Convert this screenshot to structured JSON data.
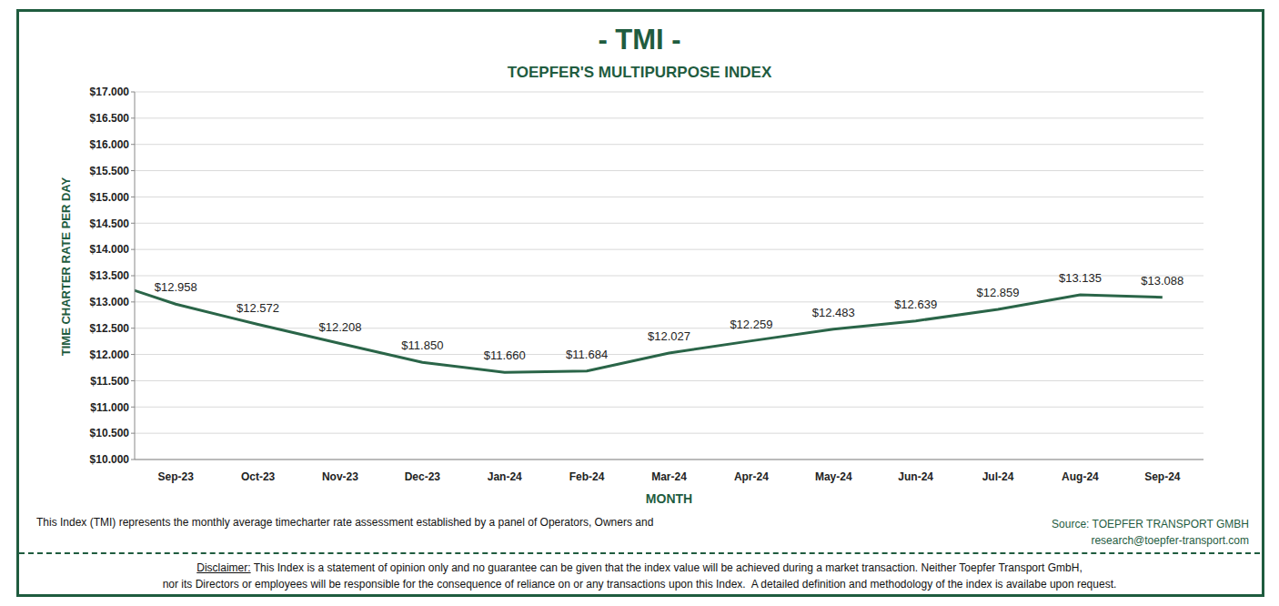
{
  "chart_data": {
    "type": "line",
    "title": "- TMI -",
    "subtitle": "TOEPFER'S MULTIPURPOSE INDEX",
    "y_label": "TIME CHARTER RATE PER DAY",
    "x_label": "MONTH",
    "categories": [
      null,
      "Sep-23",
      "Oct-23",
      "Nov-23",
      "Dec-23",
      "Jan-24",
      "Feb-24",
      "Mar-24",
      "Apr-24",
      "May-24",
      "Jun-24",
      "Jul-24",
      "Aug-24",
      "Sep-24"
    ],
    "values": [
      13.48,
      12.958,
      12.572,
      12.208,
      11.85,
      11.66,
      11.684,
      12.027,
      12.259,
      12.483,
      12.639,
      12.859,
      13.135,
      13.088
    ],
    "value_labels": [
      null,
      "$12.958",
      "$12.572",
      "$12.208",
      "$11.850",
      "$11.660",
      "$11.684",
      "$12.027",
      "$12.259",
      "$12.483",
      "$12.639",
      "$12.859",
      "$13.135",
      "$13.088"
    ],
    "color": "#2a6548",
    "ylim": [
      10,
      17
    ],
    "yticks": [
      {
        "value": 10,
        "label": "$10.000"
      },
      {
        "value": 10.5,
        "label": "$10.500"
      },
      {
        "value": 11,
        "label": "$11.000"
      },
      {
        "value": 11.5,
        "label": "$11.500"
      },
      {
        "value": 12,
        "label": "$12.000"
      },
      {
        "value": 12.5,
        "label": "$12.500"
      },
      {
        "value": 13,
        "label": "$13.000"
      },
      {
        "value": 13.5,
        "label": "$13.500"
      },
      {
        "value": 14,
        "label": "$14.000"
      },
      {
        "value": 14.5,
        "label": "$14.500"
      },
      {
        "value": 15,
        "label": "$15.000"
      },
      {
        "value": 15.5,
        "label": "$15.500"
      },
      {
        "value": 16,
        "label": "$16.000"
      },
      {
        "value": 16.5,
        "label": "$16.500"
      },
      {
        "value": 17,
        "label": "$17.000"
      }
    ],
    "grid": true,
    "data_labels": true,
    "footnote": "This Index (TMI) represents the monthly average timecharter rate assessment established by a panel of Operators, Owners and",
    "source": [
      "Source: TOEPFER TRANSPORT GMBH",
      "research@toepfer-transport.com"
    ],
    "disclaimer_label": "Disclaimer:",
    "disclaimer": [
      "This Index is a statement of opinion only and no guarantee can be given that the index value will be achieved during a market transaction. Neither Toepfer Transport GmbH,",
      "nor its Directors or employees will be responsible for the consequence of reliance on or any transactions upon this Index.  A detailed definition and methodology of the index is availabe upon request."
    ]
  }
}
